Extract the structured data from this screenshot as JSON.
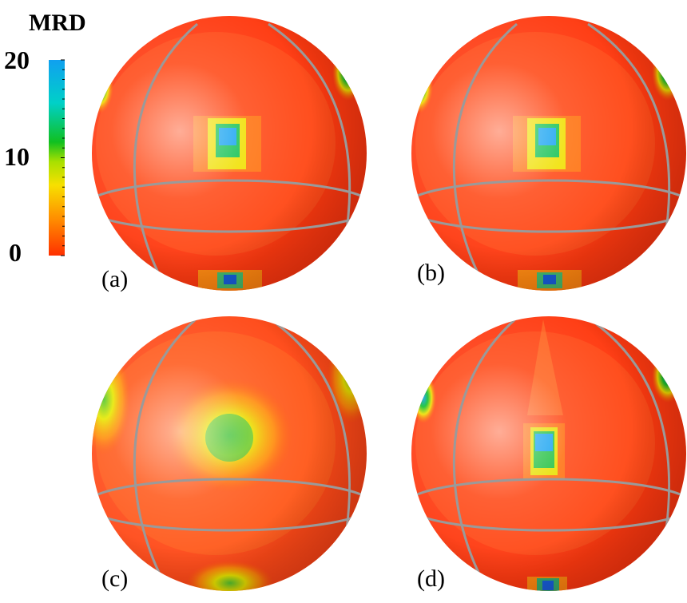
{
  "colorbar": {
    "title": "MRD",
    "ticks": [
      {
        "value": 20,
        "label": "20"
      },
      {
        "value": 10,
        "label": "10"
      },
      {
        "value": 0,
        "label": "0"
      }
    ],
    "range": [
      0,
      20
    ],
    "gradient": [
      "#ff3000",
      "#ff8a00",
      "#f7e000",
      "#a8e000",
      "#10c020",
      "#00d0c8",
      "#10a0f0"
    ]
  },
  "panels": [
    {
      "label": "(a)",
      "background": "#ff3a10"
    },
    {
      "label": "(b)",
      "background": "#ff3a10"
    },
    {
      "label": "(c)",
      "background": "#ff4a18"
    },
    {
      "label": "(d)",
      "background": "#ff3a10"
    }
  ],
  "colors": {
    "grid_line": "#9a9a9a",
    "sphere_base": "#ff3a10"
  }
}
